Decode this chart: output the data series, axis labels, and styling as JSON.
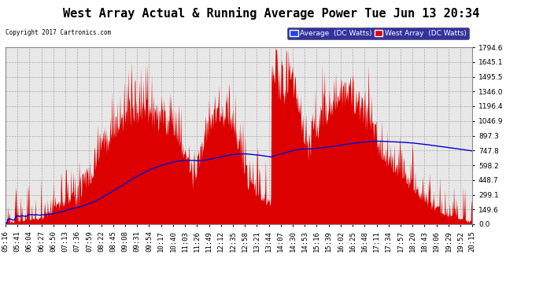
{
  "title": "West Array Actual & Running Average Power Tue Jun 13 20:34",
  "copyright": "Copyright 2017 Cartronics.com",
  "legend_avg": "Average  (DC Watts)",
  "legend_west": "West Array  (DC Watts)",
  "ylabel_values": [
    0.0,
    149.6,
    299.1,
    448.7,
    598.2,
    747.8,
    897.3,
    1046.9,
    1196.4,
    1346.0,
    1495.5,
    1645.1,
    1794.6
  ],
  "ymax": 1794.6,
  "ymin": 0.0,
  "bg_color": "#ffffff",
  "plot_bg_color": "#e8e8e8",
  "grid_color": "#aaaaaa",
  "title_color": "#000000",
  "red_color": "#dd0000",
  "blue_color": "#0000cc",
  "xtick_labels": [
    "05:16",
    "05:41",
    "06:04",
    "06:27",
    "06:50",
    "07:13",
    "07:36",
    "07:59",
    "08:22",
    "08:45",
    "09:08",
    "09:31",
    "09:54",
    "10:17",
    "10:40",
    "11:03",
    "11:26",
    "11:49",
    "12:12",
    "12:35",
    "12:58",
    "13:21",
    "13:44",
    "14:07",
    "14:30",
    "14:53",
    "15:16",
    "15:39",
    "16:02",
    "16:25",
    "16:48",
    "17:11",
    "17:34",
    "17:57",
    "18:20",
    "18:43",
    "19:06",
    "19:29",
    "19:52",
    "20:15"
  ],
  "num_points": 800,
  "title_fontsize": 11,
  "tick_fontsize": 6.5
}
